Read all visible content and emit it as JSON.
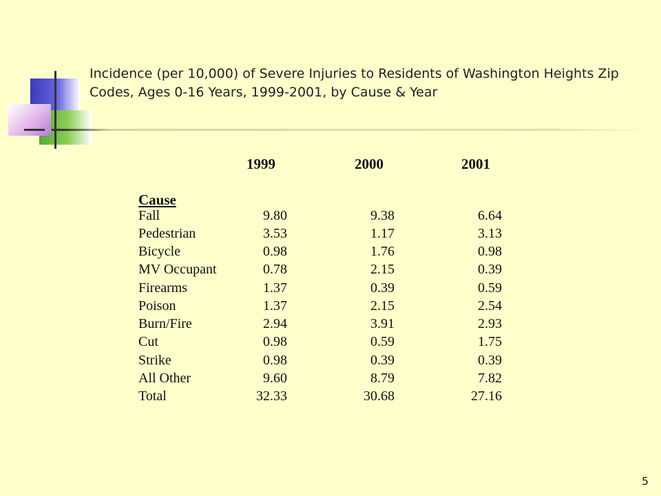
{
  "slide": {
    "title": "Incidence (per 10,000) of Severe Injuries to Residents of Washington Heights Zip Codes, Ages 0-16 Years, 1999-2001, by Cause & Year",
    "page_number": "5"
  },
  "table": {
    "year_headers": [
      "1999",
      "2000",
      "2001"
    ],
    "cause_header": "Cause",
    "rows": [
      {
        "label": "Fall",
        "values": [
          "9.80",
          "9.38",
          "6.64"
        ]
      },
      {
        "label": "Pedestrian",
        "values": [
          "3.53",
          "1.17",
          "3.13"
        ]
      },
      {
        "label": "Bicycle",
        "values": [
          "0.98",
          "1.76",
          "0.98"
        ]
      },
      {
        "label": "MV Occupant",
        "values": [
          "0.78",
          "2.15",
          "0.39"
        ]
      },
      {
        "label": "Firearms",
        "values": [
          "1.37",
          "0.39",
          "0.59"
        ]
      },
      {
        "label": "Poison",
        "values": [
          "1.37",
          "2.15",
          "2.54"
        ]
      },
      {
        "label": "Burn/Fire",
        "values": [
          "2.94",
          "3.91",
          "2.93"
        ]
      },
      {
        "label": "Cut",
        "values": [
          "0.98",
          "0.59",
          "1.75"
        ]
      },
      {
        "label": "Strike",
        "values": [
          "0.98",
          "0.39",
          "0.39"
        ]
      },
      {
        "label": "All Other",
        "values": [
          "9.60",
          "8.79",
          "7.82"
        ]
      },
      {
        "label": "Total",
        "values": [
          "32.33",
          "30.68",
          "27.16"
        ]
      }
    ]
  },
  "colors": {
    "background": "#ffffcc",
    "logo_blue": "#3a3ab8",
    "logo_green": "#5aa83a",
    "logo_pink": "#d4a0e0"
  }
}
